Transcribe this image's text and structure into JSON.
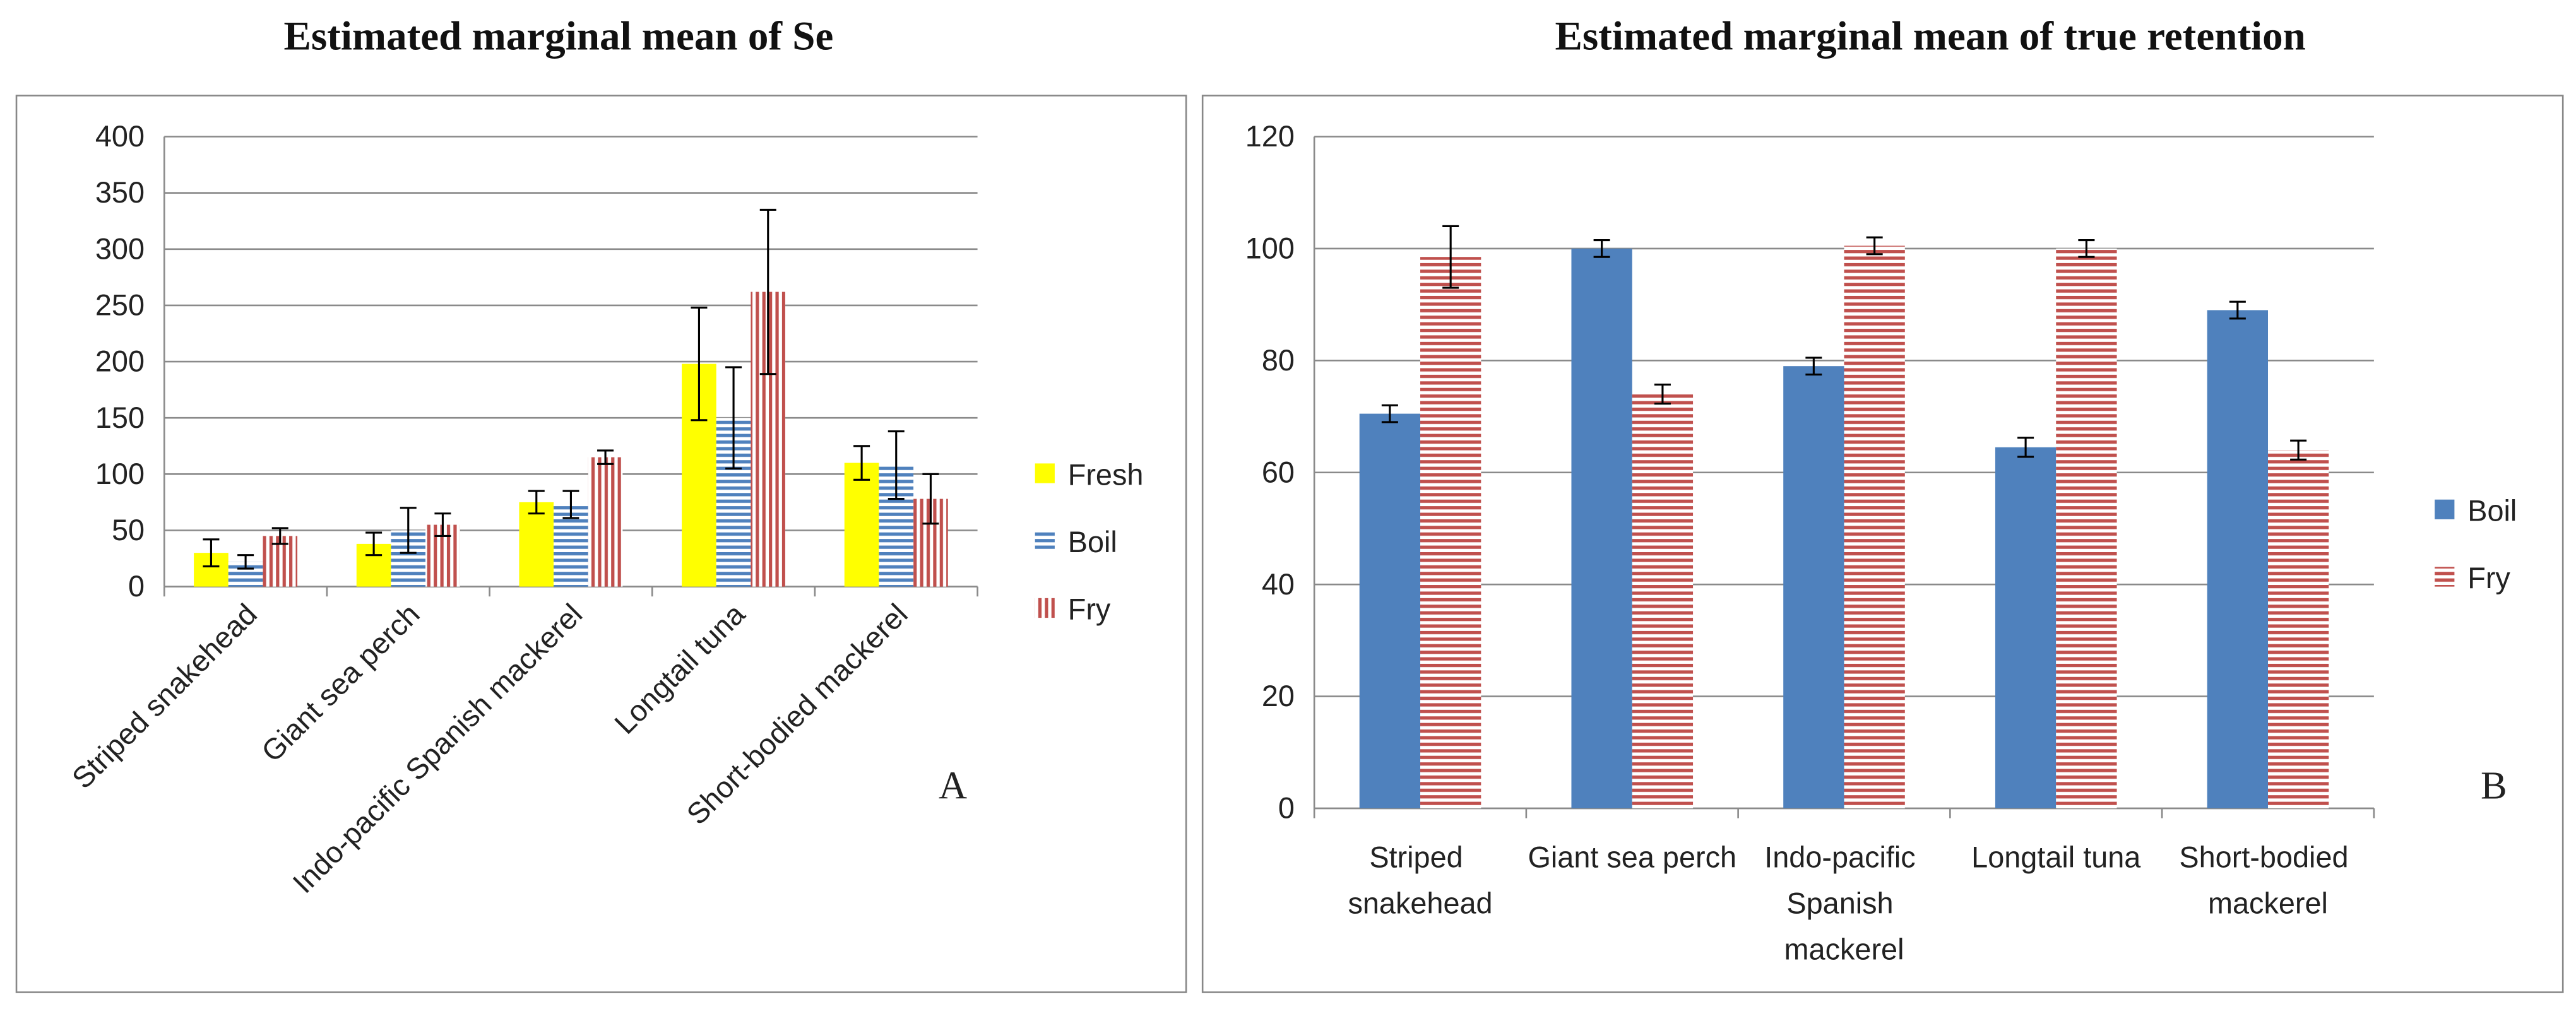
{
  "chart_data": [
    {
      "type": "bar",
      "title": "Estimated marginal mean of Se",
      "annotation": "A",
      "categories": [
        "Striped snakehead",
        "Giant sea perch",
        "Indo-pacific Spanish mackerel",
        "Longtail tuna",
        "Short-bodied mackerel"
      ],
      "series": [
        {
          "name": "Fresh",
          "color": "#ffff00",
          "pattern": "solid",
          "values": [
            30,
            38,
            75,
            198,
            110
          ],
          "errors": [
            12,
            10,
            10,
            50,
            15
          ]
        },
        {
          "name": "Boil",
          "color": "#4f81bd",
          "pattern": "horizontal",
          "values": [
            22,
            50,
            73,
            150,
            108
          ],
          "errors": [
            6,
            20,
            12,
            45,
            30
          ]
        },
        {
          "name": "Fry",
          "color": "#c0504d",
          "pattern": "vertical",
          "values": [
            45,
            55,
            115,
            262,
            78
          ],
          "errors": [
            7,
            10,
            6,
            73,
            22
          ]
        }
      ],
      "ylim": [
        0,
        400
      ],
      "yticks": [
        0,
        50,
        100,
        150,
        200,
        250,
        300,
        350,
        400
      ],
      "grid": true,
      "legend": "right"
    },
    {
      "type": "bar",
      "title": "Estimated marginal mean of true retention",
      "annotation": "B",
      "categories": [
        "Striped snakehead",
        "Giant sea perch",
        "Indo-pacific Spanish mackerel",
        "Longtail tuna",
        "Short-bodied mackerel"
      ],
      "series": [
        {
          "name": "Boil",
          "color": "#4f81bd",
          "pattern": "solid",
          "values": [
            70.5,
            100,
            79,
            64.5,
            89
          ],
          "errors": [
            1.5,
            1.5,
            1.5,
            1.7,
            1.5
          ]
        },
        {
          "name": "Fry",
          "color": "#c0504d",
          "pattern": "horizontal",
          "values": [
            98.5,
            74,
            100.5,
            100,
            64
          ],
          "errors": [
            5.5,
            1.7,
            1.5,
            1.5,
            1.7
          ]
        }
      ],
      "ylim": [
        0,
        120
      ],
      "yticks": [
        0,
        20,
        40,
        60,
        80,
        100,
        120
      ],
      "grid": true,
      "legend": "right"
    }
  ]
}
